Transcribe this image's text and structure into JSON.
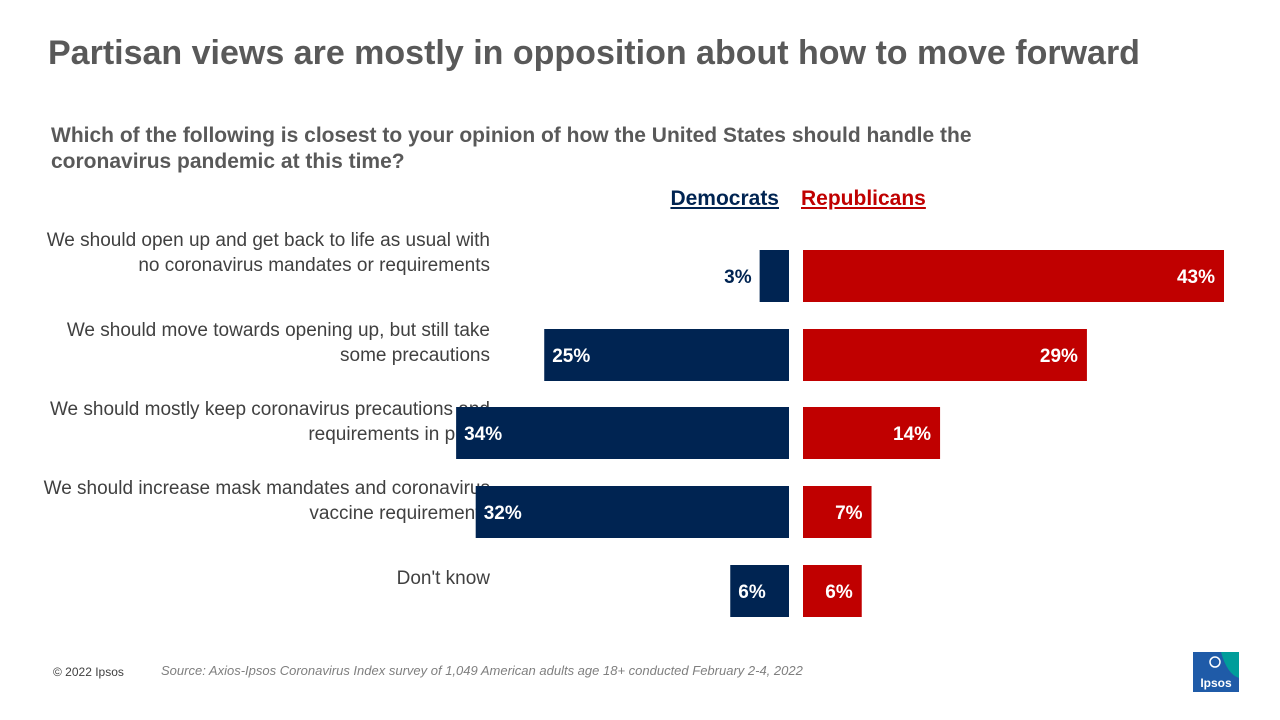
{
  "title": "Partisan views are mostly in opposition about how to move forward",
  "subtitle": "Which of the following is closest to your opinion of how the United States should handle the coronavirus pandemic at this time?",
  "footer": {
    "copyright": "© 2022 Ipsos",
    "source": "Source: Axios-Ipsos Coronavirus Index survey of 1,049 American adults age 18+ conducted February 2-4, 2022",
    "logo_text": "Ipsos"
  },
  "colors": {
    "democrats": "#002452",
    "republicans": "#c00000",
    "logo": "#1f5ba8",
    "logo_accent": "#009d9a"
  },
  "chart_data": {
    "type": "bar",
    "orientation": "horizontal-butterfly",
    "title": "Partisan views are mostly in opposition about how to move forward",
    "categories": [
      "We should open up and get back to life as usual with no coronavirus mandates or requirements",
      "We should move towards opening up, but still take some precautions",
      "We should mostly keep coronavirus precautions and requirements in place",
      "We should increase mask mandates and coronavirus vaccine requirements",
      "Don't know"
    ],
    "series": [
      {
        "name": "Democrats",
        "values": [
          3,
          25,
          34,
          32,
          6
        ],
        "labels": [
          "3%",
          "25%",
          "34%",
          "32%",
          "6%"
        ]
      },
      {
        "name": "Republicans",
        "values": [
          43,
          29,
          14,
          7,
          6
        ],
        "labels": [
          "43%",
          "29%",
          "14%",
          "7%",
          "6%"
        ]
      }
    ],
    "unit": "%",
    "xlim": [
      0,
      43
    ],
    "legend": "top",
    "grid": false
  }
}
